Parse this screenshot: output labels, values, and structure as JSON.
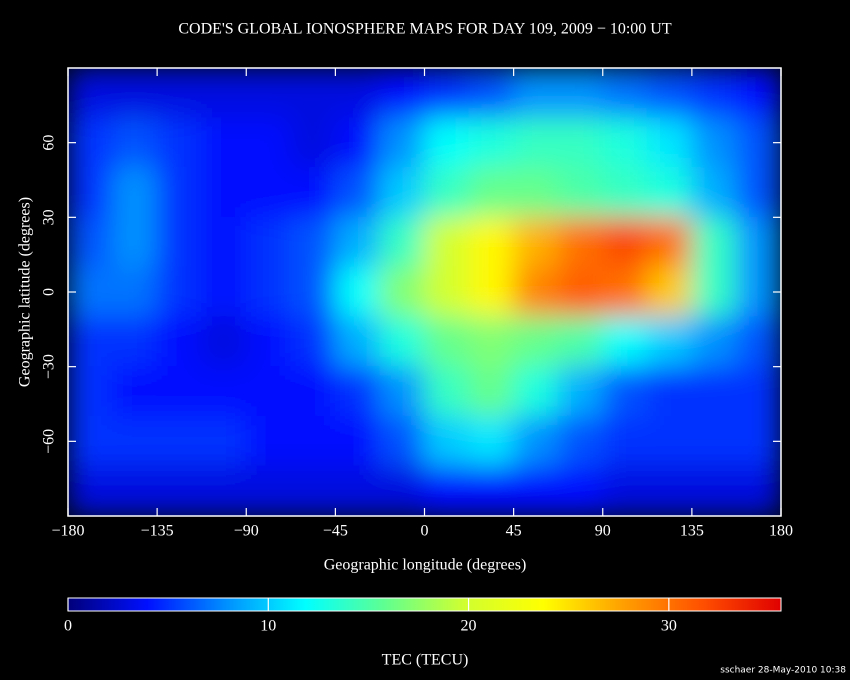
{
  "chart_data": {
    "type": "heatmap",
    "title": "CODE'S GLOBAL IONOSPHERE MAPS FOR DAY 109, 2009 − 10:00 UT",
    "x_label": "Geographic longitude (degrees)",
    "y_label": "Geographic latitude (degrees)",
    "x": [
      -168.75,
      -146.25,
      -123.75,
      -101.25,
      -78.75,
      -56.25,
      -33.75,
      -11.25,
      11.25,
      33.75,
      56.25,
      78.75,
      101.25,
      123.75,
      146.25,
      168.75
    ],
    "y": [
      80,
      60,
      40,
      20,
      0,
      -20,
      -40,
      -60,
      -80
    ],
    "z": [
      [
        3,
        3,
        3,
        3,
        3,
        3,
        3,
        4,
        5,
        6,
        8,
        8,
        7,
        6,
        5,
        4
      ],
      [
        5,
        6,
        5,
        4,
        4,
        3,
        4,
        8,
        12,
        13,
        14,
        14,
        13,
        11,
        8,
        6
      ],
      [
        5,
        8,
        5,
        4,
        4,
        4,
        6,
        10,
        14,
        16,
        16,
        15,
        14,
        13,
        9,
        6
      ],
      [
        6,
        8,
        5,
        4,
        5,
        6,
        9,
        14,
        20,
        24,
        27,
        30,
        32,
        30,
        14,
        8
      ],
      [
        7,
        7,
        5,
        4,
        5,
        6,
        12,
        17,
        20,
        24,
        29,
        31,
        30,
        26,
        14,
        8
      ],
      [
        5,
        5,
        4,
        3,
        4,
        5,
        9,
        13,
        16,
        17,
        16,
        15,
        12,
        10,
        8,
        6
      ],
      [
        5,
        4,
        4,
        4,
        4,
        4,
        5,
        8,
        14,
        16,
        13,
        9,
        6,
        5,
        5,
        5
      ],
      [
        5,
        5,
        5,
        5,
        4,
        4,
        4,
        6,
        10,
        11,
        8,
        6,
        5,
        5,
        5,
        5
      ],
      [
        3,
        3,
        3,
        3,
        3,
        3,
        3,
        3,
        4,
        4,
        4,
        4,
        3,
        3,
        3,
        3
      ]
    ],
    "xlim": [
      -180,
      180
    ],
    "xticks": [
      {
        "value": -180,
        "label": "−180"
      },
      {
        "value": -135,
        "label": "−135"
      },
      {
        "value": -90,
        "label": "−90"
      },
      {
        "value": -45,
        "label": "−45"
      },
      0,
      45,
      90,
      135,
      180
    ],
    "ylim": [
      -90,
      90
    ],
    "yticks": [
      {
        "value": -60,
        "label": "−60"
      },
      {
        "value": -30,
        "label": "−30"
      },
      0,
      30,
      60
    ],
    "colorbar_label": "TEC (TECU)",
    "colorbar_lim": [
      0,
      35.6
    ],
    "colorbar_ticks": [
      0,
      10,
      20,
      30
    ],
    "colorscale": [
      "#00007a",
      "#0010ff",
      "#0090ff",
      "#00ffff",
      "#60ff90",
      "#d0ff30",
      "#ffff00",
      "#ffa000",
      "#ff5000",
      "#e00000"
    ],
    "footer": "sschaer 28-May-2010 10:38"
  }
}
